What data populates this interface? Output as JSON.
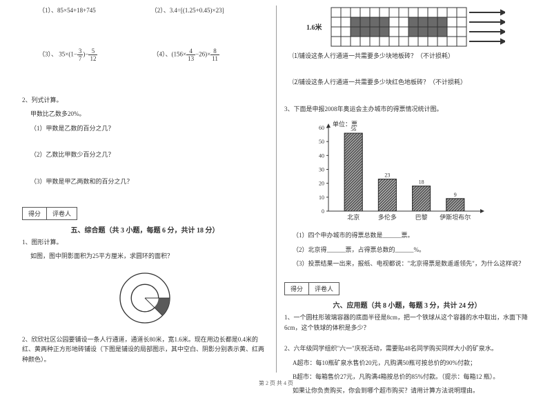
{
  "left": {
    "q1_1": "（1）、85×54+18+745",
    "q1_2": "（2）、3.4÷[(1.25+0.45)×23]",
    "q1_3_pre": "（3）、 35×(1−",
    "q1_3_f1_n": "3",
    "q1_3_f1_d": "7",
    "q1_3_mid": ")−",
    "q1_3_f2_n": "5",
    "q1_3_f2_d": "12",
    "q1_4_pre": "（4）、(156×",
    "q1_4_f1_n": "4",
    "q1_4_f1_d": "13",
    "q1_4_mid": "−26)×",
    "q1_4_f2_n": "8",
    "q1_4_f2_d": "11",
    "q2_title": "2、列式计算。",
    "q2_line1": "甲数比乙数多20%。",
    "q2_s1": "（1）甲数是乙数的百分之几？",
    "q2_s2": "（2）乙数比甲数少百分之几？",
    "q2_s3": "（3）甲数是甲乙两数和的百分之几？",
    "score1": "得分",
    "score2": "评卷人",
    "sec5": "五、综合题（共 3 小题，每题 6 分，共计 18 分）",
    "s5_q1": "1、图形计算。",
    "s5_q1b": "如图，图中阴影面积为25平方厘米，求圆环的面积？",
    "s5_q2": "2、欣欣社区公园要铺设一条人行通道，通道长80米，宽1.6米。现在用边长都是0.4米的红、黄两种正方形地砖铺设（下图是铺设的局部图示，其中空白、阴影分别表示黄、红两种颜色）。"
  },
  "right": {
    "grid_label": "1.6米",
    "grid_q1": "⑴铺设这条人行通道一共需要多少块地板砖？（不计损耗）",
    "grid_q2": "⑵铺设这条人行通道一共需要多少块红色地板砖？（不计损耗）",
    "q3_title": "3、下面是申报2008年奥运会主办城市的得票情况统计图。",
    "chart_unit": "单位：票",
    "chart": {
      "categories": [
        "北京",
        "多伦多",
        "巴黎",
        "伊斯坦布尔"
      ],
      "values": [
        56,
        23,
        18,
        9
      ],
      "ymax": 60,
      "ytick": 10,
      "bar_fill": "#5a5a5a",
      "axis_color": "#333",
      "grid_off": true
    },
    "q3_s1": "（1）四个申办城市的得票总数是______票。",
    "q3_s2": "（2）北京得______票，占得票总数的______%。",
    "q3_s3": "（3）投票结果一出来，报纸、电视都说：\"北京得票是数遥遥领先\"，为什么这样说？",
    "score1": "得分",
    "score2": "评卷人",
    "sec6": "六、应用题（共 8 小题，每题 3 分，共计 24 分）",
    "s6_q1": "1、一个圆柱形玻璃容器的底面半径是8cm，把一个铁球从这个容器的水中取出，水面下降6cm，这个铁球的体积是多少？",
    "s6_q2": "2、六年级同学组织\"六一\"庆祝活动，需要贴48名同学购买同样大小的矿泉水。",
    "s6_q2a": "A超市：每10瓶矿泉水售价20元，凡购满50瓶可按总价的90%付款；",
    "s6_q2b": "B超市：每箱售价27元，凡购满4箱按总价的85%付款。（提示：每箱12 瓶）。",
    "s6_q2c": "如果让你负责购买，你会到哪个超市购买？请用计算方法说明理由。"
  },
  "footer": "第 2 页 共 4 页"
}
